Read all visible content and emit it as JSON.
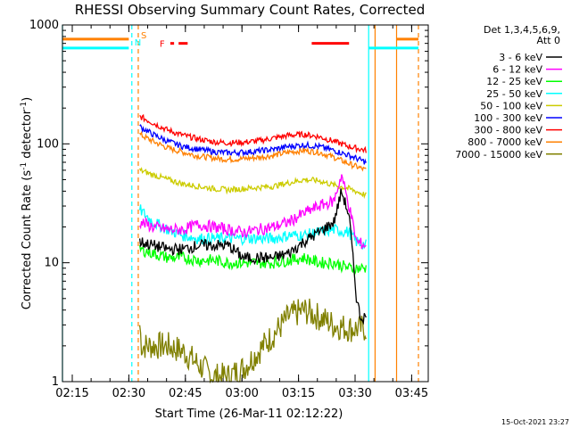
{
  "chart_data": {
    "type": "line",
    "title": "RHESSI Observing Summary Count Rates, Corrected",
    "xlabel": "Start Time (26-Mar-11 02:12:22)",
    "ylabel": "Corrected Count Rate (s⁻¹ detector⁻¹)",
    "ylabel_base": "Corrected Count Rate (s",
    "ylabel_mid": " detector",
    "ylabel_end": ")",
    "ylabel_sup": "-1",
    "y_scale": "log",
    "ylim": [
      1,
      1000
    ],
    "xlim_minutes": [
      0,
      97
    ],
    "x_tick_minutes": [
      2.6,
      17.6,
      32.6,
      47.6,
      62.6,
      77.6,
      92.6
    ],
    "x_tick_labels": [
      "02:15",
      "02:30",
      "02:45",
      "03:00",
      "03:15",
      "03:30",
      "03:45"
    ],
    "y_ticks": [
      1,
      10,
      100,
      1000
    ],
    "y_tick_labels": [
      "1",
      "10",
      "100",
      "1000"
    ],
    "legend_header": [
      "Det 1,3,4,5,6,9,",
      "Att 0"
    ],
    "legend_position": "right, outside plot",
    "timestamp": "15-Oct-2021 23:27",
    "data_minutes": [
      20.5,
      80.5
    ],
    "series": [
      {
        "name": "3 - 6 keV",
        "color": "#000000",
        "x": [
          20.5,
          24,
          28,
          32,
          36,
          40,
          44,
          48,
          52,
          56,
          60,
          64,
          68,
          72,
          74,
          76,
          78,
          79,
          80.5
        ],
        "y": [
          15,
          14,
          13,
          13,
          14,
          14,
          14,
          11,
          11,
          11,
          12,
          15,
          18,
          22,
          40,
          25,
          5,
          3.5,
          3.5
        ]
      },
      {
        "name": "6 - 12 keV",
        "color": "#ff00ff",
        "x": [
          20.5,
          24,
          28,
          32,
          36,
          40,
          44,
          48,
          52,
          56,
          60,
          64,
          68,
          72,
          74,
          76,
          78,
          80.5
        ],
        "y": [
          22,
          20,
          19,
          19,
          21,
          20,
          19,
          18,
          19,
          20,
          22,
          26,
          30,
          33,
          55,
          30,
          15,
          14
        ]
      },
      {
        "name": "12 - 25 keV",
        "color": "#00ff00",
        "x": [
          20.5,
          24,
          28,
          32,
          36,
          40,
          44,
          48,
          52,
          56,
          60,
          64,
          68,
          72,
          76,
          80.5
        ],
        "y": [
          13,
          12,
          11,
          11,
          10.5,
          10.5,
          10,
          10,
          10,
          10,
          10.5,
          11,
          10,
          10,
          9,
          9
        ]
      },
      {
        "name": "25 - 50 keV",
        "color": "#00ffff",
        "x": [
          20.5,
          24,
          28,
          32,
          36,
          40,
          44,
          48,
          52,
          56,
          60,
          64,
          68,
          72,
          76,
          78,
          80.5
        ],
        "y": [
          28,
          22,
          19,
          17,
          16,
          16,
          16,
          16,
          16,
          16,
          17,
          17,
          18,
          19,
          18,
          15,
          14
        ]
      },
      {
        "name": "50 - 100 keV",
        "color": "#cccc00",
        "x": [
          20.5,
          24,
          28,
          32,
          36,
          40,
          44,
          48,
          52,
          56,
          60,
          64,
          68,
          72,
          76,
          80.5
        ],
        "y": [
          60,
          55,
          50,
          46,
          44,
          42,
          41,
          42,
          43,
          44,
          47,
          50,
          49,
          45,
          42,
          37
        ]
      },
      {
        "name": "100 - 300 keV",
        "color": "#0000ff",
        "x": [
          20.5,
          24,
          28,
          32,
          36,
          40,
          44,
          48,
          52,
          56,
          60,
          64,
          68,
          72,
          76,
          80.5
        ],
        "y": [
          140,
          120,
          105,
          95,
          90,
          86,
          84,
          85,
          87,
          90,
          95,
          98,
          95,
          88,
          80,
          70
        ]
      },
      {
        "name": "300 - 800 keV",
        "color": "#ff0000",
        "x": [
          20.5,
          24,
          28,
          32,
          36,
          40,
          44,
          48,
          52,
          56,
          60,
          64,
          68,
          72,
          76,
          80.5
        ],
        "y": [
          170,
          150,
          130,
          118,
          110,
          104,
          102,
          103,
          106,
          112,
          118,
          120,
          115,
          105,
          95,
          88
        ]
      },
      {
        "name": "800 - 7000 keV",
        "color": "#ff8000",
        "x": [
          20.5,
          24,
          28,
          32,
          36,
          40,
          44,
          48,
          52,
          56,
          60,
          64,
          68,
          72,
          76,
          80.5
        ],
        "y": [
          120,
          105,
          92,
          85,
          79,
          76,
          74,
          75,
          77,
          80,
          85,
          88,
          85,
          77,
          68,
          60
        ]
      },
      {
        "name": "7000 - 15000 keV",
        "color": "#808000",
        "x": [
          20.5,
          21,
          24,
          28,
          32,
          36,
          40,
          44,
          48,
          52,
          56,
          60,
          64,
          68,
          72,
          76,
          80.5
        ],
        "y": [
          3,
          2,
          2,
          2,
          1.8,
          1.4,
          1.1,
          1.1,
          1.3,
          1.8,
          2.5,
          3.5,
          4,
          3.5,
          3,
          2.8,
          2.8
        ]
      }
    ],
    "mode_markers": [
      {
        "label": "S",
        "color": "#ff8000",
        "x_minutes": 20.1,
        "line_style": "dashed"
      },
      {
        "label": "N",
        "color": "#00ffff",
        "x_minutes": 18.4,
        "line_style": "dashed"
      },
      {
        "label": "",
        "color": "#00ffff",
        "x_minutes": 0,
        "line_style": "solid"
      },
      {
        "label": "",
        "color": "#00ffff",
        "x_minutes": 81.2,
        "line_style": "solid"
      },
      {
        "label": "",
        "color": "#ff8000",
        "x_minutes": 82.9,
        "line_style": "solid"
      },
      {
        "label": "",
        "color": "#ff8000",
        "x_minutes": 88.6,
        "line_style": "solid"
      },
      {
        "label": "",
        "color": "#ff8000",
        "x_minutes": 94.4,
        "line_style": "dashed"
      }
    ],
    "flag_bars": [
      {
        "label": "F",
        "color": "#ff0000",
        "segments": [
          [
            28.6,
            29.6
          ],
          [
            30.8,
            33.2
          ],
          [
            66.1,
            76.0
          ]
        ],
        "y": 700
      }
    ],
    "flag_lines": [
      {
        "color": "#ff8000",
        "segments": [
          [
            0,
            17.6
          ],
          [
            88.6,
            94.4
          ]
        ],
        "y": 760
      },
      {
        "color": "#00ffff",
        "segments": [
          [
            0,
            17.6
          ],
          [
            81.2,
            94.4
          ]
        ],
        "y": 640
      }
    ]
  }
}
